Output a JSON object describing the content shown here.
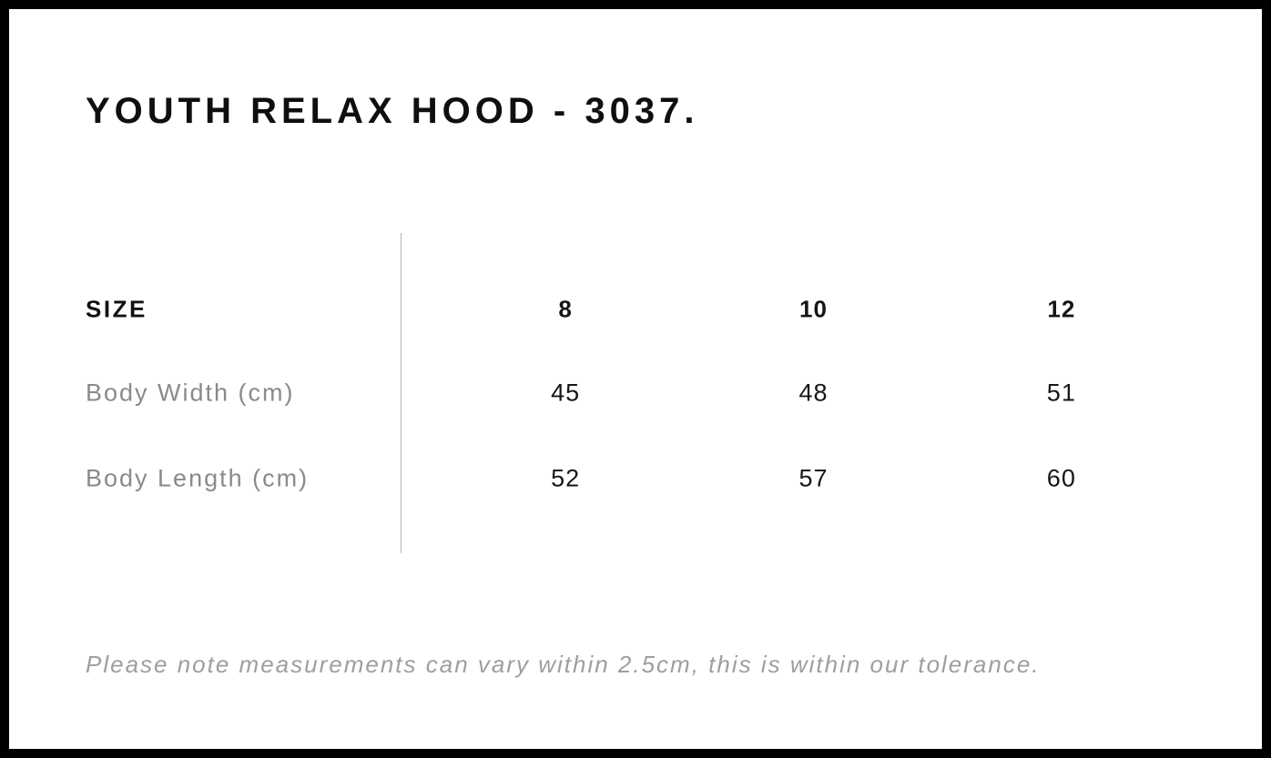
{
  "header": {
    "title": "YOUTH RELAX HOOD - 3037."
  },
  "size_chart": {
    "size_header_label": "SIZE",
    "columns": [
      "8",
      "10",
      "12"
    ],
    "rows": [
      {
        "label": "Body Width (cm)",
        "values": [
          "45",
          "48",
          "51"
        ]
      },
      {
        "label": "Body Length (cm)",
        "values": [
          "52",
          "57",
          "60"
        ]
      }
    ]
  },
  "footer": {
    "note": "Please note measurements can vary within 2.5cm, this is within our tolerance."
  },
  "chart_data": {
    "type": "table",
    "title": "YOUTH RELAX HOOD - 3037.",
    "columns": [
      "SIZE",
      "8",
      "10",
      "12"
    ],
    "rows": [
      [
        "Body Width (cm)",
        45,
        48,
        51
      ],
      [
        "Body Length (cm)",
        52,
        57,
        60
      ]
    ],
    "note": "Please note measurements can vary within 2.5cm, this is within our tolerance."
  },
  "colors": {
    "frame": "#000000",
    "background": "#ffffff",
    "text_primary": "#111111",
    "text_muted": "#8a8a8a",
    "note_text": "#9e9e9e",
    "divider": "#b4b4b4"
  }
}
